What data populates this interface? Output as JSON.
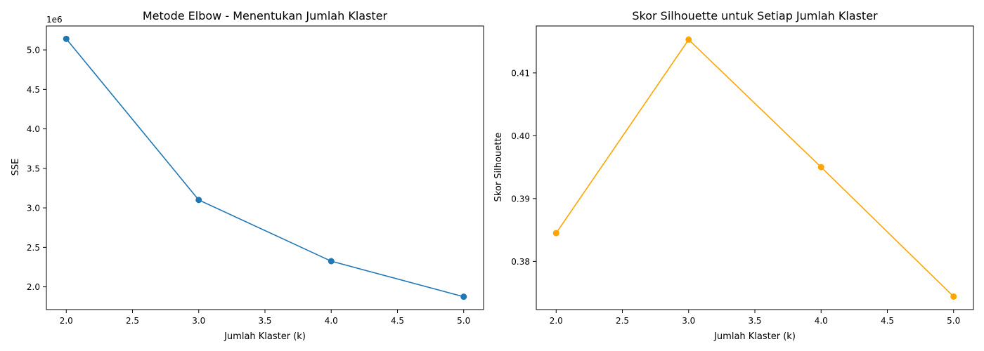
{
  "chart_data": [
    {
      "type": "line",
      "title": "Metode Elbow - Menentukan Jumlah Klaster",
      "xlabel": "Jumlah Klaster (k)",
      "ylabel": "SSE",
      "y_offset_label": "1e6",
      "x": [
        2,
        3,
        4,
        5
      ],
      "values": [
        5140000,
        3100000,
        2325000,
        1875000
      ],
      "xticks": [
        2.0,
        2.5,
        3.0,
        3.5,
        4.0,
        4.5,
        5.0
      ],
      "xtick_labels": [
        "2.0",
        "2.5",
        "3.0",
        "3.5",
        "4.0",
        "4.5",
        "5.0"
      ],
      "yticks": [
        2000000,
        2500000,
        3000000,
        3500000,
        4000000,
        4500000,
        5000000
      ],
      "ytick_labels": [
        "2.0",
        "2.5",
        "3.0",
        "3.5",
        "4.0",
        "4.5",
        "5.0"
      ],
      "xlim": [
        1.85,
        5.15
      ],
      "ylim": [
        1712000,
        5303000
      ],
      "color": "#1f77b4",
      "marker": "circle",
      "grid": false
    },
    {
      "type": "line",
      "title": "Skor Silhouette untuk Setiap Jumlah Klaster",
      "xlabel": "Jumlah Klaster (k)",
      "ylabel": "Skor Silhouette",
      "x": [
        2,
        3,
        4,
        5
      ],
      "values": [
        0.3845,
        0.4153,
        0.395,
        0.3744
      ],
      "xticks": [
        2.0,
        2.5,
        3.0,
        3.5,
        4.0,
        4.5,
        5.0
      ],
      "xtick_labels": [
        "2.0",
        "2.5",
        "3.0",
        "3.5",
        "4.0",
        "4.5",
        "5.0"
      ],
      "yticks": [
        0.38,
        0.39,
        0.4,
        0.41
      ],
      "ytick_labels": [
        "0.38",
        "0.39",
        "0.40",
        "0.41"
      ],
      "xlim": [
        1.85,
        5.15
      ],
      "ylim": [
        0.37233,
        0.41747
      ],
      "color": "#ffa500",
      "marker": "circle",
      "grid": false
    }
  ]
}
